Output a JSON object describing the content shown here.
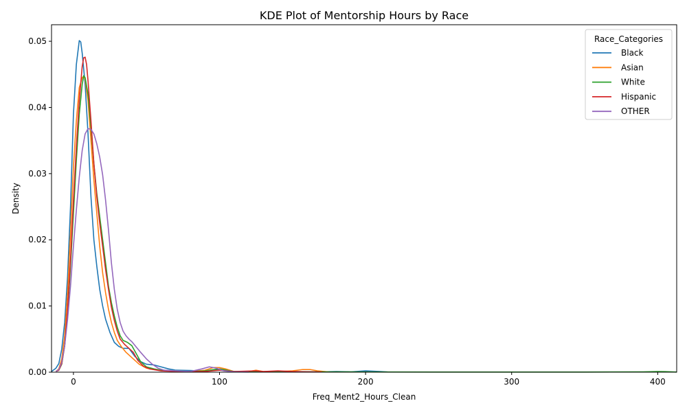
{
  "chart_data": {
    "type": "line",
    "title": "KDE Plot of Mentorship Hours by Race",
    "xlabel": "Freq_Ment2_Hours_Clean",
    "ylabel": "Density",
    "xlim": [
      -15,
      413
    ],
    "ylim": [
      0,
      0.0525
    ],
    "x_ticks": [
      0,
      100,
      200,
      300,
      400
    ],
    "x_tick_labels": [
      "0",
      "100",
      "200",
      "300",
      "400"
    ],
    "y_ticks": [
      0,
      0.01,
      0.02,
      0.03,
      0.04,
      0.05
    ],
    "y_tick_labels": [
      "0.00",
      "0.01",
      "0.02",
      "0.03",
      "0.04",
      "0.05"
    ],
    "grid": false,
    "legend": {
      "title": "Race_Categories",
      "placement": "top-right"
    },
    "series": [
      {
        "name": "Black",
        "color": "#1f77b4",
        "points": [
          [
            -15,
            0.0001
          ],
          [
            -12,
            0.0006
          ],
          [
            -10,
            0.0013
          ],
          [
            -8,
            0.0035
          ],
          [
            -6,
            0.0075
          ],
          [
            -4,
            0.0145
          ],
          [
            -2,
            0.025
          ],
          [
            0,
            0.039
          ],
          [
            2,
            0.0465
          ],
          [
            4,
            0.0501
          ],
          [
            5,
            0.0499
          ],
          [
            6,
            0.0482
          ],
          [
            8,
            0.0435
          ],
          [
            10,
            0.036
          ],
          [
            12,
            0.0265
          ],
          [
            14,
            0.02
          ],
          [
            16,
            0.016
          ],
          [
            18,
            0.0125
          ],
          [
            20,
            0.01
          ],
          [
            22,
            0.008
          ],
          [
            25,
            0.006
          ],
          [
            28,
            0.0045
          ],
          [
            31,
            0.0039
          ],
          [
            34,
            0.0036
          ],
          [
            38,
            0.0036
          ],
          [
            42,
            0.0024
          ],
          [
            46,
            0.0016
          ],
          [
            50,
            0.0012
          ],
          [
            55,
            0.0011
          ],
          [
            60,
            0.0008
          ],
          [
            65,
            0.0005
          ],
          [
            70,
            0.0003
          ],
          [
            80,
            0.00025
          ],
          [
            90,
            0.00015
          ],
          [
            100,
            0.0004
          ],
          [
            110,
            0.0001
          ],
          [
            130,
            5e-05
          ],
          [
            150,
            0.0001
          ],
          [
            170,
            5e-05
          ],
          [
            180,
            0.0001
          ],
          [
            190,
            5e-05
          ],
          [
            200,
            0.0002
          ],
          [
            210,
            0.0001
          ],
          [
            215,
            3e-05
          ]
        ]
      },
      {
        "name": "Asian",
        "color": "#ff7f0e",
        "points": [
          [
            -12,
            0.0001
          ],
          [
            -10,
            0.0005
          ],
          [
            -8,
            0.002
          ],
          [
            -6,
            0.0055
          ],
          [
            -4,
            0.012
          ],
          [
            -2,
            0.021
          ],
          [
            0,
            0.031
          ],
          [
            2,
            0.038
          ],
          [
            4,
            0.043
          ],
          [
            6,
            0.0445
          ],
          [
            7,
            0.0447
          ],
          [
            8,
            0.0443
          ],
          [
            10,
            0.041
          ],
          [
            12,
            0.035
          ],
          [
            14,
            0.029
          ],
          [
            16,
            0.024
          ],
          [
            18,
            0.019
          ],
          [
            20,
            0.015
          ],
          [
            22,
            0.012
          ],
          [
            24,
            0.0095
          ],
          [
            26,
            0.0075
          ],
          [
            28,
            0.006
          ],
          [
            30,
            0.0048
          ],
          [
            33,
            0.0038
          ],
          [
            36,
            0.003
          ],
          [
            40,
            0.0022
          ],
          [
            45,
            0.0012
          ],
          [
            50,
            0.0006
          ],
          [
            55,
            0.0004
          ],
          [
            60,
            0.0003
          ],
          [
            70,
            0.0001
          ],
          [
            80,
            0.0001
          ],
          [
            90,
            0.0003
          ],
          [
            96,
            0.0007
          ],
          [
            100,
            0.0007
          ],
          [
            104,
            0.0005
          ],
          [
            110,
            0.0001
          ],
          [
            120,
            0.0001
          ],
          [
            125,
            0.0003
          ],
          [
            130,
            0.0001
          ],
          [
            140,
            0.0001
          ],
          [
            150,
            0.0002
          ],
          [
            157,
            0.0004
          ],
          [
            162,
            0.0004
          ],
          [
            167,
            0.0002
          ],
          [
            175,
            3e-05
          ]
        ]
      },
      {
        "name": "White",
        "color": "#2ca02c",
        "points": [
          [
            -12,
            0.0001
          ],
          [
            -10,
            0.0003
          ],
          [
            -8,
            0.0012
          ],
          [
            -6,
            0.004
          ],
          [
            -4,
            0.009
          ],
          [
            -2,
            0.016
          ],
          [
            0,
            0.024
          ],
          [
            2,
            0.032
          ],
          [
            4,
            0.039
          ],
          [
            6,
            0.0435
          ],
          [
            7,
            0.0448
          ],
          [
            8,
            0.0445
          ],
          [
            10,
            0.042
          ],
          [
            12,
            0.037
          ],
          [
            14,
            0.0315
          ],
          [
            16,
            0.027
          ],
          [
            18,
            0.0235
          ],
          [
            20,
            0.02
          ],
          [
            22,
            0.0165
          ],
          [
            24,
            0.013
          ],
          [
            26,
            0.0105
          ],
          [
            28,
            0.0085
          ],
          [
            30,
            0.0068
          ],
          [
            32,
            0.0055
          ],
          [
            34,
            0.0048
          ],
          [
            37,
            0.0045
          ],
          [
            40,
            0.004
          ],
          [
            43,
            0.0028
          ],
          [
            46,
            0.0016
          ],
          [
            50,
            0.0008
          ],
          [
            55,
            0.0005
          ],
          [
            60,
            0.0003
          ],
          [
            70,
            0.0002
          ],
          [
            80,
            0.0001
          ],
          [
            90,
            0.0002
          ],
          [
            100,
            0.0005
          ],
          [
            105,
            0.0003
          ],
          [
            110,
            0.0001
          ],
          [
            120,
            5e-05
          ],
          [
            140,
            0.0001
          ],
          [
            160,
            5e-05
          ],
          [
            180,
            5e-05
          ],
          [
            200,
            3e-05
          ],
          [
            250,
            2e-05
          ],
          [
            300,
            2e-05
          ],
          [
            350,
            2e-05
          ],
          [
            390,
            5e-05
          ],
          [
            400,
            0.0001
          ],
          [
            405,
            8e-05
          ],
          [
            413,
            2e-05
          ]
        ]
      },
      {
        "name": "Hispanic",
        "color": "#d62728",
        "points": [
          [
            -12,
            0.0001
          ],
          [
            -10,
            0.0003
          ],
          [
            -8,
            0.0013
          ],
          [
            -6,
            0.004
          ],
          [
            -4,
            0.0095
          ],
          [
            -2,
            0.017
          ],
          [
            0,
            0.026
          ],
          [
            2,
            0.034
          ],
          [
            4,
            0.041
          ],
          [
            6,
            0.0462
          ],
          [
            7,
            0.0475
          ],
          [
            8,
            0.0476
          ],
          [
            9,
            0.0465
          ],
          [
            10,
            0.044
          ],
          [
            12,
            0.038
          ],
          [
            14,
            0.0315
          ],
          [
            16,
            0.0265
          ],
          [
            18,
            0.0225
          ],
          [
            20,
            0.019
          ],
          [
            22,
            0.0155
          ],
          [
            24,
            0.0125
          ],
          [
            26,
            0.0098
          ],
          [
            28,
            0.0078
          ],
          [
            30,
            0.0062
          ],
          [
            32,
            0.005
          ],
          [
            35,
            0.0042
          ],
          [
            38,
            0.0036
          ],
          [
            41,
            0.003
          ],
          [
            44,
            0.0018
          ],
          [
            48,
            0.0009
          ],
          [
            52,
            0.0005
          ],
          [
            60,
            0.0002
          ],
          [
            70,
            0.0001
          ],
          [
            90,
            0.0001
          ],
          [
            100,
            0.0003
          ],
          [
            110,
            0.0001
          ],
          [
            125,
            0.0002
          ],
          [
            130,
            0.0001
          ],
          [
            140,
            0.0002
          ],
          [
            150,
            0.0001
          ],
          [
            160,
            5e-05
          ],
          [
            170,
            3e-05
          ]
        ]
      },
      {
        "name": "OTHER",
        "color": "#9467bd",
        "points": [
          [
            -12,
            0.0001
          ],
          [
            -10,
            0.0004
          ],
          [
            -8,
            0.0015
          ],
          [
            -6,
            0.004
          ],
          [
            -4,
            0.008
          ],
          [
            -2,
            0.013
          ],
          [
            0,
            0.019
          ],
          [
            2,
            0.0245
          ],
          [
            4,
            0.0295
          ],
          [
            6,
            0.0335
          ],
          [
            8,
            0.036
          ],
          [
            10,
            0.0368
          ],
          [
            12,
            0.0367
          ],
          [
            14,
            0.036
          ],
          [
            16,
            0.0345
          ],
          [
            18,
            0.0325
          ],
          [
            20,
            0.0298
          ],
          [
            22,
            0.026
          ],
          [
            24,
            0.0215
          ],
          [
            26,
            0.0165
          ],
          [
            28,
            0.0125
          ],
          [
            30,
            0.0095
          ],
          [
            32,
            0.0075
          ],
          [
            34,
            0.0062
          ],
          [
            36,
            0.0055
          ],
          [
            38,
            0.005
          ],
          [
            40,
            0.0046
          ],
          [
            43,
            0.0038
          ],
          [
            46,
            0.003
          ],
          [
            50,
            0.002
          ],
          [
            54,
            0.0012
          ],
          [
            58,
            0.0006
          ],
          [
            62,
            0.0003
          ],
          [
            70,
            0.0002
          ],
          [
            80,
            0.0001
          ],
          [
            88,
            0.0005
          ],
          [
            93,
            0.0008
          ],
          [
            98,
            0.0006
          ],
          [
            103,
            0.0002
          ],
          [
            110,
            5e-05
          ],
          [
            120,
            2e-05
          ]
        ]
      }
    ]
  }
}
